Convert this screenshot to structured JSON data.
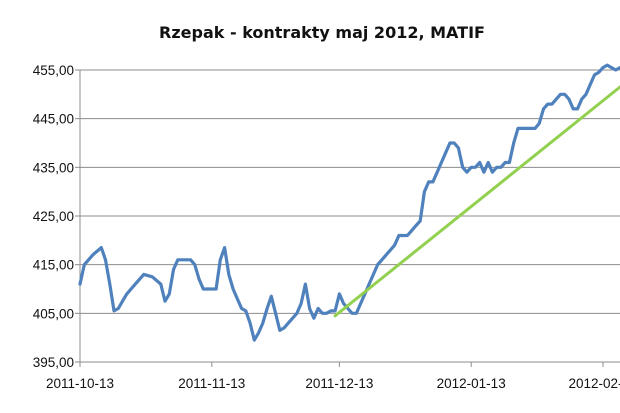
{
  "chart_data": {
    "type": "line",
    "title": "Rzepak - kontrakty maj 2012, MATIF",
    "xlabel": "",
    "ylabel": "",
    "ylim": [
      395,
      455
    ],
    "yticks": [
      "395,00",
      "405,00",
      "415,00",
      "425,00",
      "435,00",
      "445,00",
      "455,00"
    ],
    "yticks_values": [
      395,
      405,
      415,
      425,
      435,
      445,
      455
    ],
    "xticks": [
      "2011-10-13",
      "2011-11-13",
      "2011-12-13",
      "2012-01-13",
      "2012-02-13"
    ],
    "xticks_index": [
      0,
      31,
      61,
      92,
      123
    ],
    "x_index_range": [
      0,
      127
    ],
    "grid": true,
    "legend": "none",
    "series": [
      {
        "color": "#4f81bd",
        "x": [
          0,
          1,
          3,
          5,
          6,
          7,
          8,
          9,
          10,
          11,
          13,
          15,
          17,
          19,
          20,
          21,
          22,
          23,
          24,
          25,
          26,
          27,
          28,
          29,
          30,
          31,
          32,
          33,
          34,
          35,
          36,
          37,
          38,
          39,
          40,
          41,
          42,
          43,
          44,
          45,
          46,
          47,
          48,
          49,
          50,
          51,
          52,
          53,
          54,
          55,
          56,
          57,
          58,
          59,
          60,
          61,
          62,
          63,
          64,
          65,
          66,
          67,
          68,
          69,
          70,
          71,
          72,
          73,
          74,
          75,
          76,
          77,
          78,
          79,
          80,
          81,
          82,
          83,
          84,
          85,
          86,
          87,
          88,
          89,
          90,
          91,
          92,
          93,
          94,
          95,
          96,
          97,
          98,
          99,
          100,
          101,
          102,
          103,
          104,
          105,
          106,
          107,
          108,
          109,
          110,
          111,
          112,
          113,
          114,
          115,
          116,
          117,
          118,
          119,
          120,
          121,
          122,
          123,
          124,
          125,
          126,
          127
        ],
        "values": [
          411,
          415,
          417,
          418.5,
          416,
          411,
          405.5,
          406,
          407.5,
          409,
          411,
          413,
          412.5,
          411,
          407.5,
          409,
          414,
          416,
          416,
          416,
          416,
          415,
          412,
          410,
          410,
          410,
          410,
          416,
          418.5,
          413,
          410,
          408,
          406,
          405.5,
          403,
          399.5,
          401,
          403,
          406,
          408.5,
          405,
          401.5,
          402,
          403,
          404,
          405,
          407,
          411,
          406,
          404,
          406,
          405,
          405,
          405.5,
          405.5,
          409,
          407,
          406,
          405,
          405,
          407,
          409,
          411,
          413,
          415,
          416,
          417,
          418,
          419,
          421,
          421,
          421,
          422,
          423,
          424,
          430,
          432,
          432,
          434,
          436,
          438,
          440,
          440,
          439,
          435,
          434,
          435,
          435,
          436,
          434,
          436,
          434,
          435,
          435,
          436,
          436,
          440,
          443,
          443,
          443,
          443,
          443,
          444,
          447,
          448,
          448,
          449,
          450,
          450,
          449,
          447,
          447,
          449,
          450,
          452,
          454,
          454.5,
          455.5,
          456,
          455.5,
          455,
          455.5
        ]
      },
      {
        "color": "#92d050",
        "x": [
          60,
          127
        ],
        "values": [
          404.5,
          451.5
        ]
      }
    ]
  }
}
